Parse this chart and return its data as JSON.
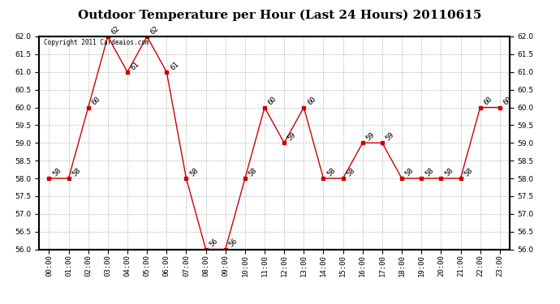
{
  "title": "Outdoor Temperature per Hour (Last 24 Hours) 20110615",
  "copyright": "Copyright 2011 Cardeaios.com",
  "hours": [
    "00:00",
    "01:00",
    "02:00",
    "03:00",
    "04:00",
    "05:00",
    "06:00",
    "07:00",
    "08:00",
    "09:00",
    "10:00",
    "11:00",
    "12:00",
    "13:00",
    "14:00",
    "15:00",
    "16:00",
    "17:00",
    "18:00",
    "19:00",
    "20:00",
    "21:00",
    "22:00",
    "23:00"
  ],
  "values": [
    58,
    58,
    60,
    62,
    61,
    62,
    61,
    58,
    56,
    56,
    58,
    60,
    59,
    60,
    58,
    58,
    59,
    59,
    58,
    58,
    58,
    58,
    60,
    60
  ],
  "line_color": "#cc0000",
  "marker_color": "#cc0000",
  "bg_color": "#ffffff",
  "grid_color": "#bbbbbb",
  "ylim_min": 56.0,
  "ylim_max": 62.0,
  "ytick_step": 0.5,
  "title_fontsize": 11,
  "label_fontsize": 6.5,
  "annotation_fontsize": 6.5,
  "copyright_fontsize": 5.5
}
